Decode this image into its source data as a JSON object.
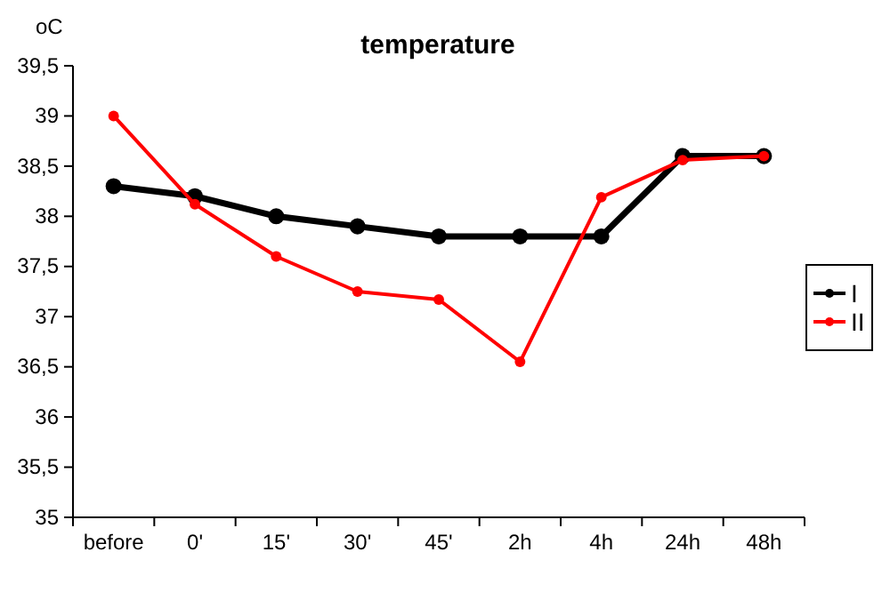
{
  "chart_data": {
    "type": "line",
    "title": "temperature",
    "ylabel": "oC",
    "categories": [
      "before",
      "0'",
      "15'",
      "30'",
      "45'",
      "2h",
      "4h",
      "24h",
      "48h"
    ],
    "series": [
      {
        "name": "I",
        "color": "#000000",
        "values": [
          38.3,
          38.2,
          38.0,
          37.9,
          37.8,
          37.8,
          37.8,
          38.6,
          38.6
        ]
      },
      {
        "name": "II",
        "color": "#ff0000",
        "values": [
          39.0,
          38.12,
          37.6,
          37.25,
          37.17,
          36.55,
          38.19,
          38.56,
          38.6
        ]
      }
    ],
    "ylim": [
      35,
      39.5
    ],
    "yticks": [
      {
        "value": 35,
        "label": "35"
      },
      {
        "value": 35.5,
        "label": "35,5"
      },
      {
        "value": 36,
        "label": "36"
      },
      {
        "value": 36.5,
        "label": "36,5"
      },
      {
        "value": 37,
        "label": "37"
      },
      {
        "value": 37.5,
        "label": "37,5"
      },
      {
        "value": 38,
        "label": "38"
      },
      {
        "value": 38.5,
        "label": "38,5"
      },
      {
        "value": 39,
        "label": "39"
      },
      {
        "value": 39.5,
        "label": "39,5"
      }
    ],
    "grid": false,
    "legend": "right",
    "marker": "circle",
    "line_style": "solid"
  }
}
